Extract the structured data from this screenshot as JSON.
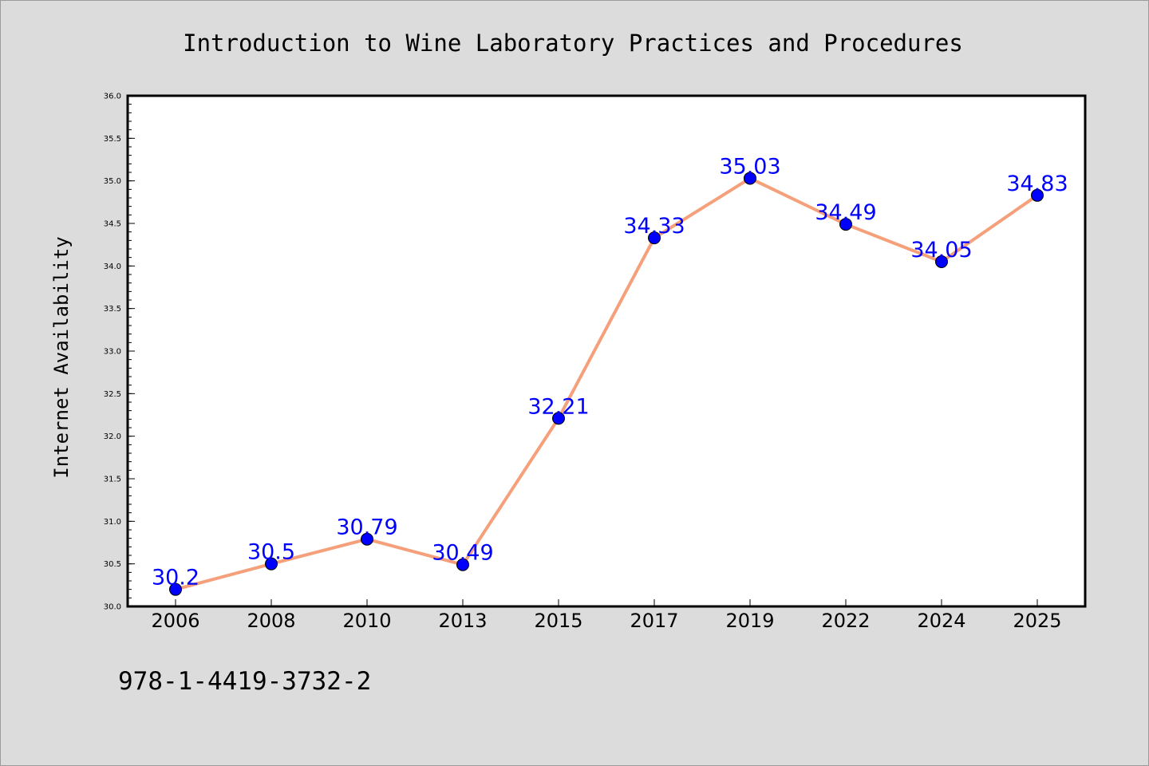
{
  "chart_data": {
    "type": "line",
    "title": "Introduction to Wine Laboratory Practices and Procedures",
    "xlabel": "",
    "ylabel": "Internet Availability",
    "categories": [
      "2006",
      "2008",
      "2010",
      "2013",
      "2015",
      "2017",
      "2019",
      "2022",
      "2024",
      "2025"
    ],
    "series": [
      {
        "values": [
          30.2,
          30.5,
          30.79,
          30.49,
          32.21,
          34.33,
          35.03,
          34.49,
          34.05,
          34.83
        ]
      }
    ],
    "data_labels": [
      "30.2",
      "30.5",
      "30.79",
      "30.49",
      "32.21",
      "34.33",
      "35.03",
      "34.49",
      "34.05",
      "34.83"
    ],
    "ylim": [
      30.0,
      36.0
    ],
    "yticks": [
      "30.0",
      "30.5",
      "31.0",
      "31.5",
      "32.0",
      "32.5",
      "33.0",
      "33.5",
      "34.0",
      "34.5",
      "35.0",
      "35.5",
      "36.0"
    ],
    "grid": false,
    "legend": "none",
    "colors": {
      "line": "#f5a07a",
      "marker": "#0000ff",
      "label": "#0000ff",
      "background": "#dcdcdc",
      "plot_area": "#ffffff"
    }
  },
  "footer": {
    "isbn": "978-1-4419-3732-2"
  }
}
